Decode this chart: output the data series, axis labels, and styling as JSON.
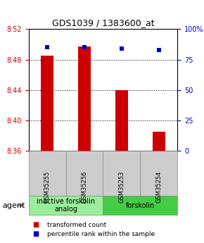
{
  "title": "GDS1039 / 1383600_at",
  "samples": [
    "GSM35255",
    "GSM35256",
    "GSM35253",
    "GSM35254"
  ],
  "bar_values": [
    8.485,
    8.497,
    8.44,
    8.385
  ],
  "percentile_values": [
    85,
    85,
    84,
    83
  ],
  "ylim_left": [
    8.36,
    8.52
  ],
  "ylim_right": [
    0,
    100
  ],
  "yticks_left": [
    8.36,
    8.4,
    8.44,
    8.48,
    8.52
  ],
  "yticks_right": [
    0,
    25,
    50,
    75,
    100
  ],
  "ytick_labels_right": [
    "0",
    "25",
    "50",
    "75",
    "100%"
  ],
  "bar_color": "#cc0000",
  "dot_color": "#0000cc",
  "bar_bottom": 8.36,
  "groups": [
    {
      "label": "inactive forskolin\nanalog",
      "samples": [
        0,
        1
      ],
      "color": "#99ee99"
    },
    {
      "label": "forskolin",
      "samples": [
        2,
        3
      ],
      "color": "#44cc44"
    }
  ],
  "agent_label": "agent",
  "legend_items": [
    {
      "color": "#cc0000",
      "label": "transformed count"
    },
    {
      "color": "#0000cc",
      "label": "percentile rank within the sample"
    }
  ],
  "bg_color": "#ffffff",
  "bar_width": 0.35,
  "box_bg_color": "#cccccc",
  "title_fontsize": 9,
  "tick_fontsize": 7,
  "sample_fontsize": 6,
  "group_fontsize": 7,
  "legend_fontsize": 6.5,
  "agent_fontsize": 8
}
